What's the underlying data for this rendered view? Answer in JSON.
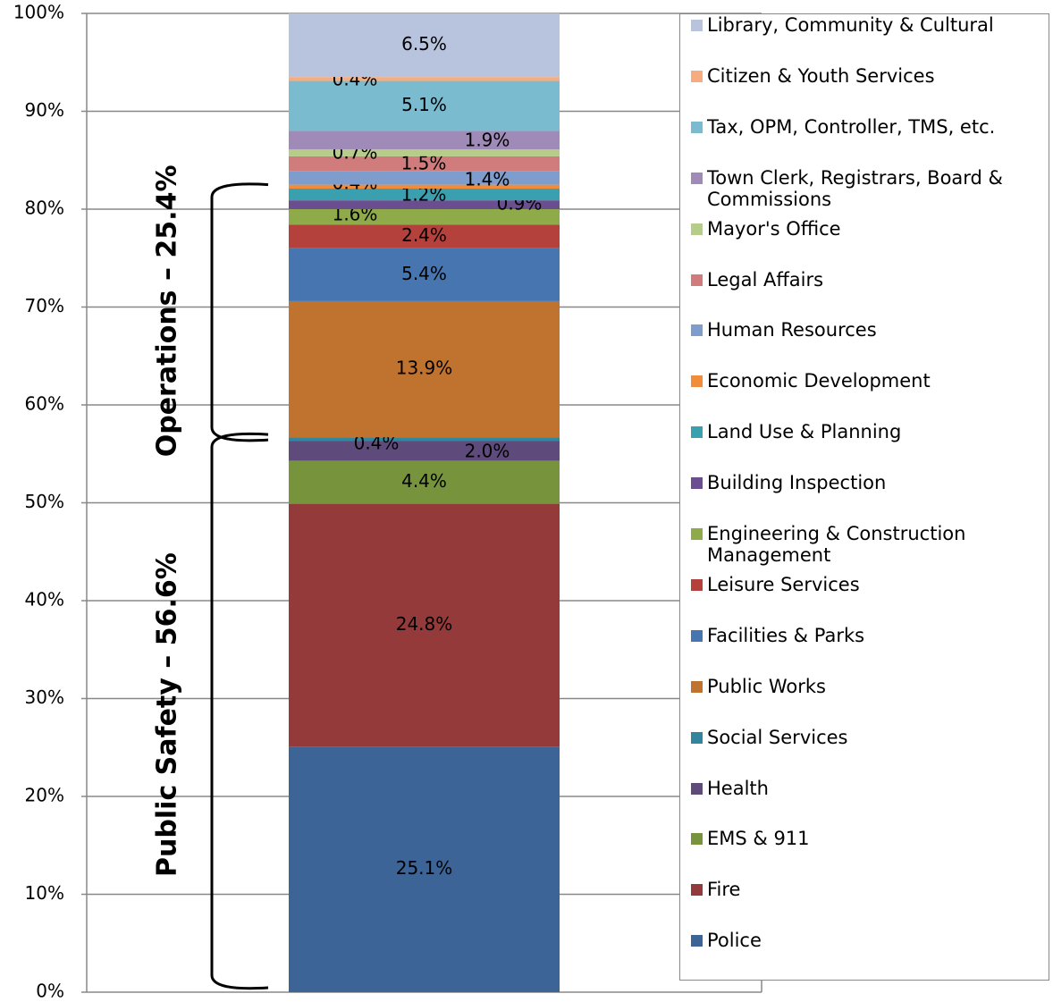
{
  "chart_data": {
    "type": "stacked-bar",
    "annotations": [
      "Public Safety – 56.6%",
      "Operations – 25.4%"
    ],
    "ylim": [
      0,
      100
    ],
    "yticks": [
      {
        "value": 0,
        "label": "0%"
      },
      {
        "value": 10,
        "label": "10%"
      },
      {
        "value": 20,
        "label": "20%"
      },
      {
        "value": 30,
        "label": "30%"
      },
      {
        "value": 40,
        "label": "40%"
      },
      {
        "value": 50,
        "label": "50%"
      },
      {
        "value": 60,
        "label": "60%"
      },
      {
        "value": 70,
        "label": "70%"
      },
      {
        "value": 80,
        "label": "80%"
      },
      {
        "value": 90,
        "label": "90%"
      },
      {
        "value": 100,
        "label": "100%"
      }
    ],
    "grid": true,
    "legend": "right",
    "series": [
      {
        "name": "Police",
        "color": "#3c6496",
        "values": [
          25.1
        ],
        "value_labels": [
          "25.1%"
        ]
      },
      {
        "name": "Fire",
        "color": "#953a3a",
        "values": [
          24.8
        ],
        "value_labels": [
          "24.8%"
        ]
      },
      {
        "name": "EMS & 911",
        "color": "#77933c",
        "values": [
          4.4
        ],
        "value_labels": [
          "4.4%"
        ]
      },
      {
        "name": "Health",
        "color": "#5f4a7c",
        "values": [
          2.0
        ],
        "value_labels": [
          "2.0%"
        ]
      },
      {
        "name": "Social Services",
        "color": "#31859c",
        "values": [
          0.4
        ],
        "value_labels": [
          "0.4%"
        ]
      },
      {
        "name": "Public Works",
        "color": "#c0722f",
        "values": [
          13.9
        ],
        "value_labels": [
          "13.9%"
        ]
      },
      {
        "name": "Facilities & Parks",
        "color": "#4775b0",
        "values": [
          5.4
        ],
        "value_labels": [
          "5.4%"
        ]
      },
      {
        "name": "Leisure Services",
        "color": "#b5413c",
        "values": [
          2.4
        ],
        "value_labels": [
          "2.4%"
        ]
      },
      {
        "name": "Engineering & Construction Management",
        "color": "#8faa48",
        "values": [
          1.6
        ],
        "value_labels": [
          "1.6%"
        ]
      },
      {
        "name": "Building Inspection",
        "color": "#6b4e8f",
        "values": [
          0.9
        ],
        "value_labels": [
          "0.9%"
        ]
      },
      {
        "name": "Land Use & Planning",
        "color": "#3aa0b0",
        "values": [
          1.2
        ],
        "value_labels": [
          "1.2%"
        ]
      },
      {
        "name": "Economic Development",
        "color": "#f18c3a",
        "values": [
          0.4
        ],
        "value_labels": [
          "0.4%"
        ]
      },
      {
        "name": "Human Resources",
        "color": "#7e9ccc",
        "values": [
          1.4
        ],
        "value_labels": [
          "1.4%"
        ]
      },
      {
        "name": "Legal Affairs",
        "color": "#d07c7c",
        "values": [
          1.5
        ],
        "value_labels": [
          "1.5%"
        ]
      },
      {
        "name": "Mayor's Office",
        "color": "#b6cd8a",
        "values": [
          0.7
        ],
        "value_labels": [
          "0.7%"
        ]
      },
      {
        "name": "Town Clerk, Registrars, Board & Commissions",
        "color": "#a08bb8",
        "values": [
          1.9
        ],
        "value_labels": [
          "1.9%"
        ]
      },
      {
        "name": "Tax, OPM, Controller, TMS, etc.",
        "color": "#7bbbd0",
        "values": [
          5.1
        ],
        "value_labels": [
          "5.1%"
        ]
      },
      {
        "name": "Citizen & Youth Services",
        "color": "#f6ac7e",
        "values": [
          0.4
        ],
        "value_labels": [
          "0.4%"
        ]
      },
      {
        "name": "Library, Community & Cultural",
        "color": "#b8c4de",
        "values": [
          6.5
        ],
        "value_labels": [
          "6.5%"
        ]
      }
    ]
  }
}
